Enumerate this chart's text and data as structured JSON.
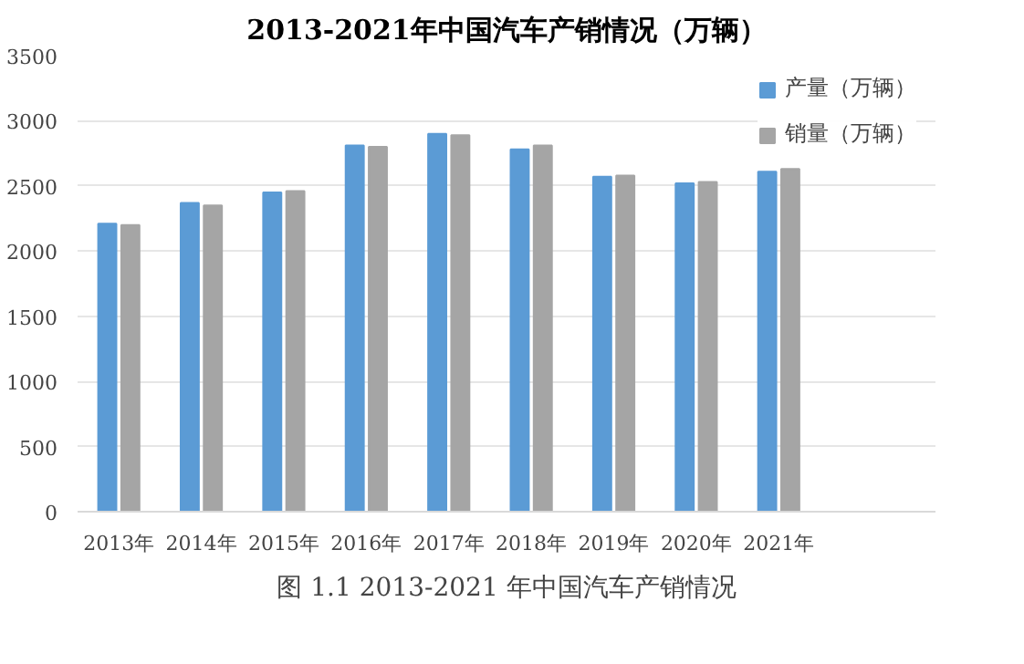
{
  "chart_data": {
    "type": "bar",
    "title": "2013-2021年中国汽车产销情况（万辆）",
    "categories": [
      "2013年",
      "2014年",
      "2015年",
      "2016年",
      "2017年",
      "2018年",
      "2019年",
      "2020年",
      "2021年"
    ],
    "series": [
      {
        "name": "产量（万辆）",
        "color": "#5b9bd5",
        "values": [
          2210,
          2370,
          2450,
          2810,
          2900,
          2780,
          2570,
          2520,
          2610
        ]
      },
      {
        "name": "销量（万辆）",
        "color": "#a5a5a5",
        "values": [
          2200,
          2350,
          2460,
          2800,
          2890,
          2810,
          2580,
          2530,
          2630
        ]
      }
    ],
    "ylim": [
      0,
      3500
    ],
    "yticks": [
      0,
      500,
      1000,
      1500,
      2000,
      2500,
      3000,
      3500
    ],
    "grid": "y",
    "legend": "right",
    "annotations": [
      "图 1.1 2013-2021 年中国汽车产销情况"
    ]
  }
}
